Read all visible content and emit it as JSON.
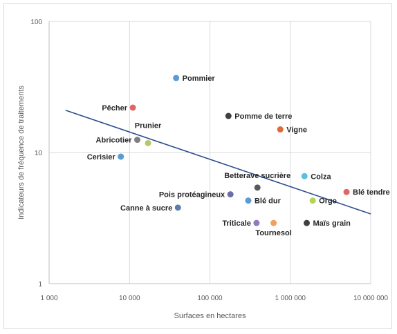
{
  "chart_data": {
    "type": "scatter",
    "title": "",
    "xlabel": "Surfaces en hectares",
    "ylabel": "Indicateurs de fréquence de traitements",
    "x_scale": "log",
    "y_scale": "log",
    "xlim": [
      1000,
      10000000
    ],
    "ylim": [
      1,
      100
    ],
    "grid": true,
    "x_ticks": [
      {
        "value": 1000,
        "label": "1 000"
      },
      {
        "value": 10000,
        "label": "10 000"
      },
      {
        "value": 100000,
        "label": "100 000"
      },
      {
        "value": 1000000,
        "label": "1 000 000"
      },
      {
        "value": 10000000,
        "label": "10 000 000"
      }
    ],
    "y_ticks": [
      {
        "value": 1,
        "label": "1"
      },
      {
        "value": 10,
        "label": "10"
      },
      {
        "value": 100,
        "label": "100"
      }
    ],
    "points": [
      {
        "label": "Pommier",
        "x": 38000,
        "y": 37,
        "color": "#5b9bd5"
      },
      {
        "label": "Pêcher",
        "x": 11000,
        "y": 22,
        "color": "#e06666"
      },
      {
        "label": "Pomme de terre",
        "x": 170000,
        "y": 19,
        "color": "#404040"
      },
      {
        "label": "Vigne",
        "x": 750000,
        "y": 15,
        "color": "#e06a3a"
      },
      {
        "label": "Prunier",
        "x": 17000,
        "y": 11.8,
        "color": "#b5c96a"
      },
      {
        "label": "Abricotier",
        "x": 12500,
        "y": 12.5,
        "color": "#7f7f7f"
      },
      {
        "label": "Cerisier",
        "x": 7800,
        "y": 9.3,
        "color": "#5b9bd5"
      },
      {
        "label": "Betterave sucrière",
        "x": 390000,
        "y": 5.4,
        "color": "#595959"
      },
      {
        "label": "Colza",
        "x": 1500000,
        "y": 6.6,
        "color": "#5bc0de"
      },
      {
        "label": "Blé tendre",
        "x": 5000000,
        "y": 5.0,
        "color": "#e06666"
      },
      {
        "label": "Pois protéagineux",
        "x": 180000,
        "y": 4.8,
        "color": "#6a6fa8"
      },
      {
        "label": "Blé dur",
        "x": 300000,
        "y": 4.3,
        "color": "#5b9bd5"
      },
      {
        "label": "Orge",
        "x": 1900000,
        "y": 4.3,
        "color": "#b5d35a"
      },
      {
        "label": "Canne à sucre",
        "x": 40000,
        "y": 3.8,
        "color": "#5b7fa8"
      },
      {
        "label": "Triticale",
        "x": 380000,
        "y": 2.9,
        "color": "#8e7cc3"
      },
      {
        "label": "Tournesol",
        "x": 620000,
        "y": 2.9,
        "color": "#f0a060"
      },
      {
        "label": "Maïs grain",
        "x": 1600000,
        "y": 2.9,
        "color": "#404040"
      }
    ],
    "trendline": {
      "type": "power",
      "color": "#2f4f8f",
      "x": [
        1600,
        10000000
      ],
      "y": [
        21,
        3.4
      ]
    },
    "colors": {
      "grid": "#d9d9d9",
      "axis": "#bfbfbf"
    }
  }
}
